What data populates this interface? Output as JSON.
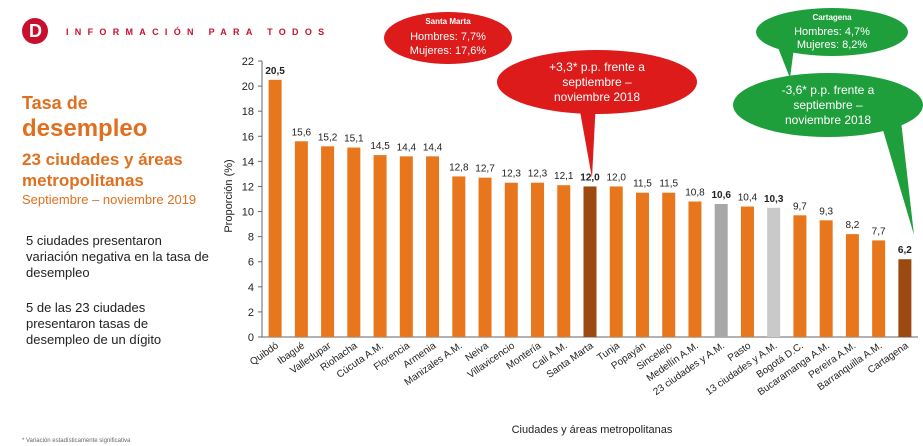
{
  "header": {
    "brand_text": "INFORMACIÓN PARA TODOS",
    "logo_letter": "D"
  },
  "left_panel": {
    "title_line1": "Tasa de",
    "title_line2": "desempleo",
    "title_line3": "23 ciudades y áreas metropolitanas",
    "period": "Septiembre – noviembre 2019",
    "note1": "5 ciudades presentaron variación negativa en la tasa de desempleo",
    "note2": "5 de las 23 ciudades presentaron tasas de desempleo de un dígito"
  },
  "callouts": {
    "santa_marta": {
      "title": "Santa Marta",
      "line1": "Hombres: 7,7%",
      "line2": "Mujeres: 17,6%",
      "color": "#dd1b1b"
    },
    "santa_marta_change": {
      "line1": "+3,3* p.p. frente a",
      "line2": "septiembre –",
      "line3": "noviembre 2018",
      "color": "#dd1b1b"
    },
    "cartagena": {
      "title": "Cartagena",
      "line1": "Hombres: 4,7%",
      "line2": "Mujeres: 8,2%",
      "color": "#1f9e3c"
    },
    "cartagena_change": {
      "line1": "-3,6* p.p. frente a",
      "line2": "septiembre –",
      "line3": "noviembre 2018",
      "color": "#1f9e3c"
    }
  },
  "footnote": "* Variación estadísticamente significativa",
  "chart_data": {
    "type": "bar",
    "title": "",
    "xlabel": "Ciudades y áreas metropolitanas",
    "ylabel": "Proporción (%)",
    "ylim": [
      0,
      22
    ],
    "yticks": [
      0,
      2,
      4,
      6,
      8,
      10,
      12,
      14,
      16,
      18,
      20,
      22
    ],
    "categories": [
      "Quibdó",
      "Ibagué",
      "Valledupar",
      "Riohacha",
      "Cúcuta A.M.",
      "Florencia",
      "Armenia",
      "Manizales A.M.",
      "Neiva",
      "Villavicencio",
      "Montería",
      "Cali A.M.",
      "Santa Marta",
      "Tunja",
      "Popayán",
      "Sincelejo",
      "Medellín A.M.",
      "23 ciudades y A.M.",
      "Pasto",
      "13 ciudades y A.M.",
      "Bogotá D.C.",
      "Bucaramanga A.M.",
      "Pereira A.M.",
      "Barranquilla A.M.",
      "Cartagena"
    ],
    "values": [
      20.5,
      15.6,
      15.2,
      15.1,
      14.5,
      14.4,
      14.4,
      12.8,
      12.7,
      12.3,
      12.3,
      12.1,
      12.0,
      12.0,
      11.5,
      11.5,
      10.8,
      10.6,
      10.4,
      10.3,
      9.7,
      9.3,
      8.2,
      7.7,
      6.2
    ],
    "value_labels": [
      "20,5",
      "15,6",
      "15,2",
      "15,1",
      "14,5",
      "14,4",
      "14,4",
      "12,8",
      "12,7",
      "12,3",
      "12,3",
      "12,1",
      "12,0",
      "12,0",
      "11,5",
      "11,5",
      "10,8",
      "10,6",
      "10,4",
      "10,3",
      "9,7",
      "9,3",
      "8,2",
      "7,7",
      "6,2"
    ],
    "bold_labels": [
      0,
      12,
      17,
      19,
      24
    ],
    "bar_colors": [
      "#e8761c",
      "#e8761c",
      "#e8761c",
      "#e8761c",
      "#e8761c",
      "#e8761c",
      "#e8761c",
      "#e8761c",
      "#e8761c",
      "#e8761c",
      "#e8761c",
      "#e8761c",
      "#9c4a12",
      "#e8761c",
      "#e8761c",
      "#e8761c",
      "#e8761c",
      "#a8a8a8",
      "#e8761c",
      "#c9c9c9",
      "#e8761c",
      "#e8761c",
      "#e8761c",
      "#e8761c",
      "#9c4a12"
    ],
    "grid": false,
    "legend": "none"
  }
}
